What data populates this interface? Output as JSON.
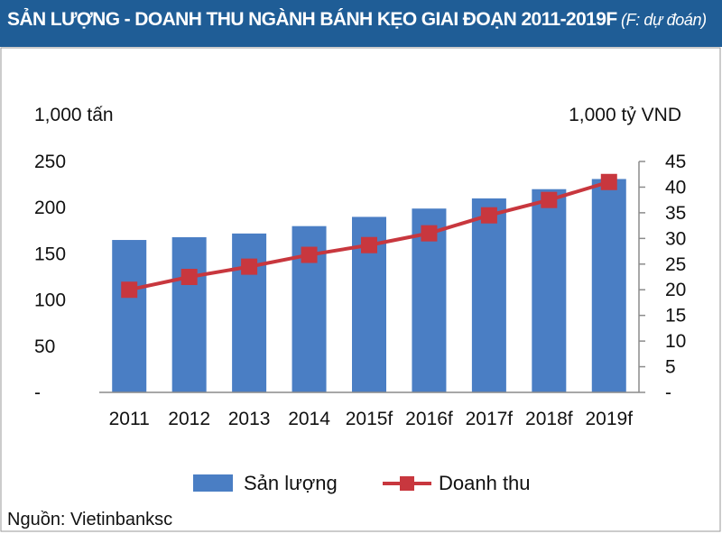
{
  "title": {
    "main": "SẢN LƯỢNG - DOANH THU NGÀNH BÁNH KẸO GIAI ĐOẠN 2011-2019F",
    "note": "(F: dự đoán)"
  },
  "source": "Nguồn: Vietinbanksc",
  "colors": {
    "title_bg": "#1f5d96",
    "bar": "#4a7ec4",
    "line": "#c8373e"
  },
  "chart_data": {
    "type": "bar+line",
    "categories": [
      "2011",
      "2012",
      "2013",
      "2014",
      "2015f",
      "2016f",
      "2017f",
      "2018f",
      "2019f"
    ],
    "series": [
      {
        "name": "Sản lượng",
        "type": "bar",
        "axis": "left",
        "values": [
          165,
          168,
          172,
          180,
          190,
          199,
          210,
          220,
          231
        ]
      },
      {
        "name": "Doanh thu",
        "type": "line",
        "axis": "right",
        "values": [
          20,
          22.5,
          24.5,
          26.8,
          28.7,
          31,
          34.5,
          37.5,
          41
        ]
      }
    ],
    "left_axis": {
      "unit": "1,000 tấn",
      "range": [
        0,
        250
      ],
      "ticks": [
        0,
        50,
        100,
        150,
        200,
        250
      ],
      "tick_labels": [
        "-",
        "50",
        "100",
        "150",
        "200",
        "250"
      ]
    },
    "right_axis": {
      "unit": "1,000 tỷ VND",
      "range": [
        0,
        45
      ],
      "ticks": [
        0,
        5,
        10,
        15,
        20,
        25,
        30,
        35,
        40,
        45
      ],
      "tick_labels": [
        "-",
        "5",
        "10",
        "15",
        "20",
        "25",
        "30",
        "35",
        "40",
        "45"
      ]
    },
    "grid": false,
    "legend": {
      "position": "bottom",
      "entries": [
        "Sản lượng",
        "Doanh thu"
      ]
    }
  }
}
